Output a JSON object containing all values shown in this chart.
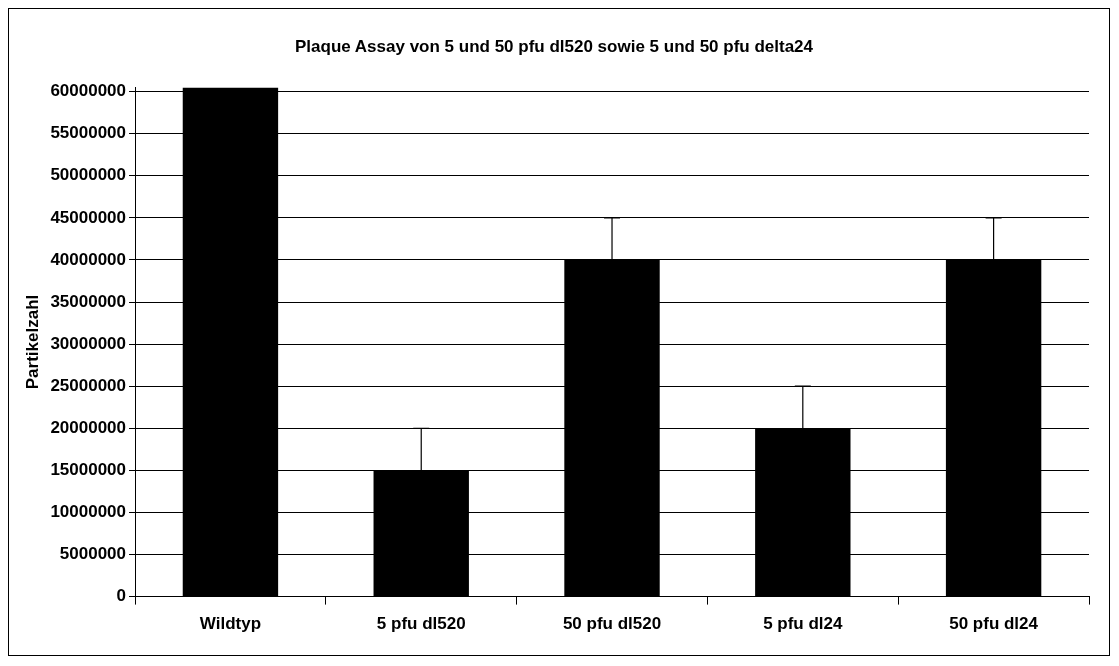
{
  "chart_data": {
    "type": "bar",
    "title": "Plaque Assay von 5 und 50 pfu dl520 sowie 5 und 50 pfu delta24",
    "ylabel": "Partikelzahl",
    "categories": [
      "Wildtyp",
      "5 pfu dl520",
      "50 pfu dl520",
      "5 pfu dl24",
      "50 pfu dl24"
    ],
    "values": [
      60500000,
      15000000,
      40000000,
      20000000,
      40000000
    ],
    "errors": [
      null,
      [
        15000000,
        20000000
      ],
      [
        40000000,
        45000000
      ],
      [
        20000000,
        25000000
      ],
      [
        40000000,
        45000000
      ]
    ],
    "color": "#000000",
    "ylim": [
      0,
      60500000
    ],
    "yticks": [
      0,
      5000000,
      10000000,
      15000000,
      20000000,
      25000000,
      30000000,
      35000000,
      40000000,
      45000000,
      50000000,
      55000000,
      60000000
    ],
    "grid": "y",
    "legend": false
  }
}
